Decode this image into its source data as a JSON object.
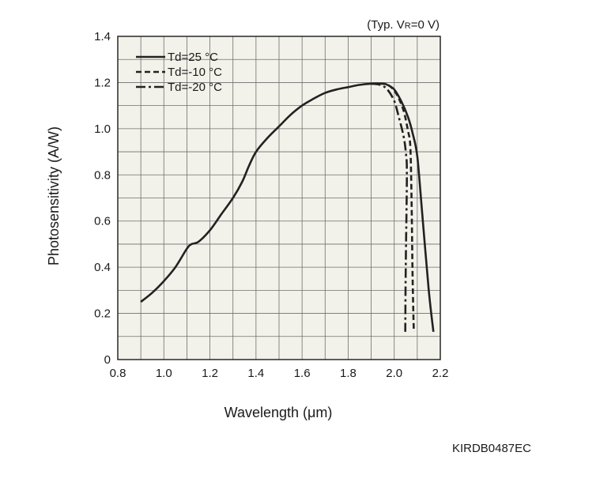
{
  "chart_data": {
    "type": "line",
    "condition_note": {
      "prefix": "(Typ. V",
      "subscript": "R",
      "suffix": "=0 V)"
    },
    "xlabel": "Wavelength (μm)",
    "ylabel": "Photosensitivity (A/W)",
    "xlim": [
      0.8,
      2.2
    ],
    "ylim": [
      0,
      1.4
    ],
    "xticks": [
      "0.8",
      "1.0",
      "1.2",
      "1.4",
      "1.6",
      "1.8",
      "2.0",
      "2.2"
    ],
    "yticks": [
      "0",
      "0.2",
      "0.4",
      "0.6",
      "0.8",
      "1.0",
      "1.2",
      "1.4"
    ],
    "grid": true,
    "legend_position": "top-left",
    "series": [
      {
        "name": "Td=25 °C",
        "style": "solid",
        "x": [
          0.9,
          0.95,
          1.0,
          1.05,
          1.1,
          1.12,
          1.15,
          1.2,
          1.25,
          1.3,
          1.34,
          1.37,
          1.4,
          1.45,
          1.5,
          1.55,
          1.6,
          1.65,
          1.7,
          1.75,
          1.8,
          1.85,
          1.9,
          1.95,
          1.97,
          2.0,
          2.03,
          2.06,
          2.08,
          2.1,
          2.12,
          2.15,
          2.17
        ],
        "y": [
          0.25,
          0.29,
          0.34,
          0.4,
          0.48,
          0.5,
          0.51,
          0.56,
          0.63,
          0.7,
          0.77,
          0.84,
          0.9,
          0.96,
          1.01,
          1.06,
          1.1,
          1.13,
          1.155,
          1.17,
          1.18,
          1.19,
          1.195,
          1.195,
          1.19,
          1.17,
          1.12,
          1.05,
          0.98,
          0.88,
          0.65,
          0.3,
          0.12
        ]
      },
      {
        "name": "Td=-10 °C",
        "style": "dashed",
        "x": [
          1.9,
          1.95,
          1.98,
          2.01,
          2.04,
          2.06,
          2.07,
          2.075,
          2.08,
          2.085
        ],
        "y": [
          1.195,
          1.195,
          1.185,
          1.15,
          1.08,
          0.99,
          0.92,
          0.7,
          0.35,
          0.12
        ]
      },
      {
        "name": "Td=-20 °C",
        "style": "dash-dot",
        "x": [
          1.9,
          1.94,
          1.97,
          2.0,
          2.02,
          2.04,
          2.05,
          2.055,
          2.05,
          2.048
        ],
        "y": [
          1.195,
          1.19,
          1.17,
          1.12,
          1.05,
          0.97,
          0.9,
          0.8,
          0.4,
          0.12
        ]
      }
    ]
  },
  "figure_code": "KIRDB0487EC"
}
